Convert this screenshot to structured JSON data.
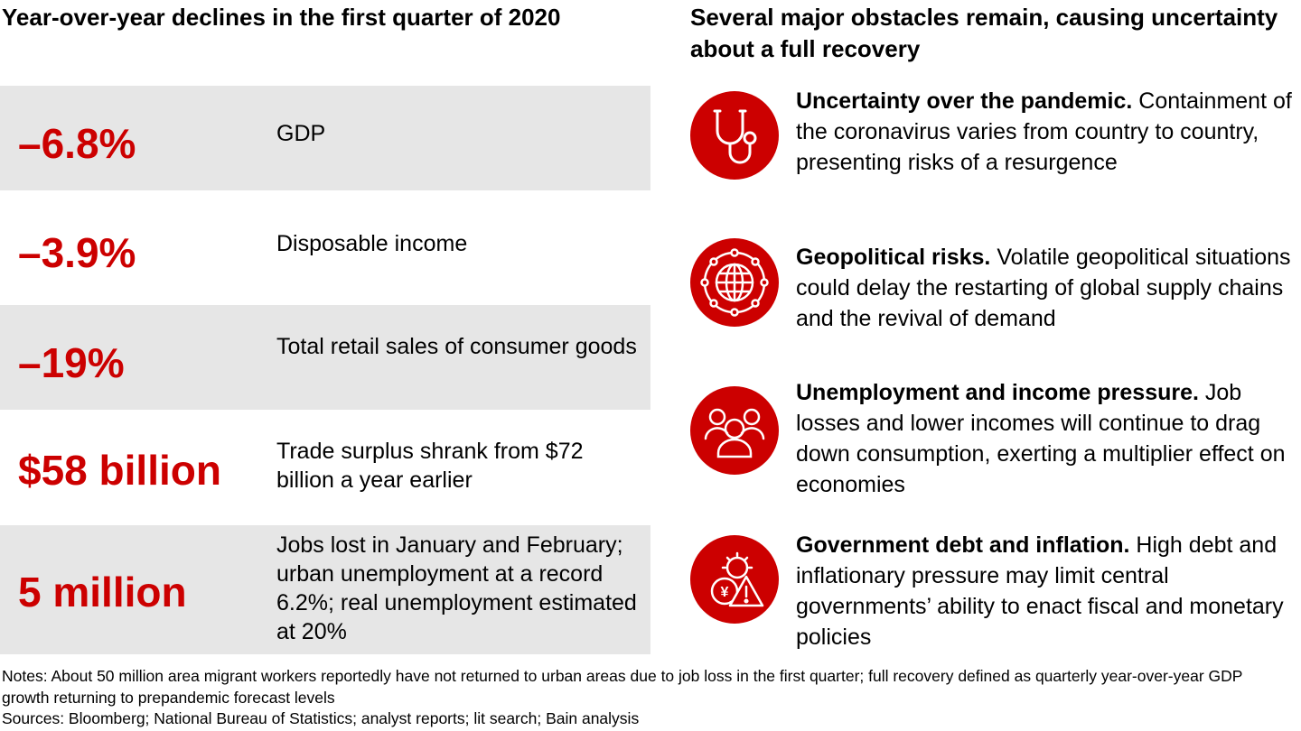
{
  "left": {
    "heading": "Year-over-year declines in the first quarter of 2020",
    "stats": [
      {
        "value": "–6.8%",
        "label": "GDP"
      },
      {
        "value": "–3.9%",
        "label": "Disposable income"
      },
      {
        "value": "–19%",
        "label": "Total retail sales of consumer goods"
      },
      {
        "value": "$58 billion",
        "label": "Trade surplus shrank from $72 billion a year earlier"
      },
      {
        "value": "5 million",
        "label": "Jobs lost in January and February; urban unemployment at a record 6.2%; real unemployment estimated at 20%"
      }
    ]
  },
  "right": {
    "heading": "Several major obstacles remain, causing uncertainty about a full recovery",
    "obstacles": [
      {
        "icon": "stethoscope-icon",
        "title": "Uncertainty over the pandemic.",
        "text": "Containment of the coronavirus varies from country to country, presenting risks of a resurgence"
      },
      {
        "icon": "globe-network-icon",
        "title": "Geopolitical risks.",
        "text": "Volatile geopolitical situations could delay the restarting of global supply chains and the revival of demand"
      },
      {
        "icon": "people-group-icon",
        "title": "Unemployment and income pressure.",
        "text": "Job losses and lower incomes will continue to drag down consumption, exerting a multiplier effect on economies"
      },
      {
        "icon": "debt-warning-icon",
        "title": "Government debt and inflation.",
        "text": "High debt and inflationary pressure may limit central governments’ ability to enact fiscal and monetary policies"
      }
    ]
  },
  "footnotes": {
    "notes": "Notes: About 50 million area migrant workers reportedly have not returned to urban areas due to job loss in the first quarter; full recovery defined as quarterly year-over-year GDP growth returning to prepandemic forecast levels",
    "sources": "Sources: Bloomberg; National Bureau of Statistics; analyst reports; lit search; Bain analysis"
  },
  "colors": {
    "accent_red": "#cc0000",
    "row_shade": "#e6e6e6"
  }
}
